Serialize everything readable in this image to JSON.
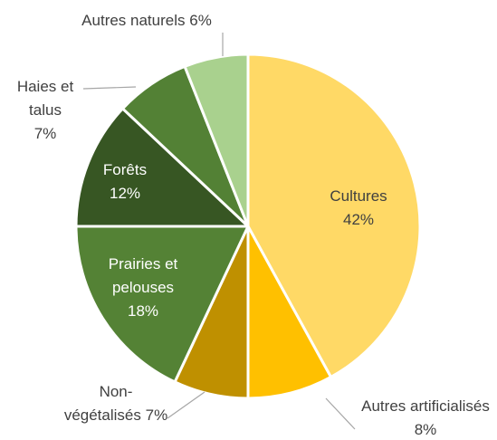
{
  "chart_data": {
    "type": "pie",
    "categories": [
      "Cultures",
      "Autres artificialisés",
      "Non-végétalisés",
      "Prairies et pelouses",
      "Forêts",
      "Haies et talus",
      "Autres naturels"
    ],
    "values": [
      42,
      8,
      7,
      18,
      12,
      7,
      6
    ],
    "value_labels": [
      "42%",
      "8%",
      "7%",
      "18%",
      "12%",
      "7%",
      "6%"
    ],
    "colors": [
      "#ffd966",
      "#ffc000",
      "#bf9000",
      "#548235",
      "#375623",
      "#538135",
      "#a9d18e"
    ]
  }
}
